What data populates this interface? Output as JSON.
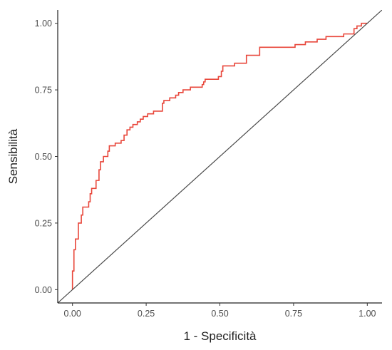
{
  "chart_data": {
    "type": "line",
    "xlabel": "1 - Specificità",
    "ylabel": "Sensibilità",
    "xlim": [
      -0.05,
      1.05
    ],
    "ylim": [
      -0.05,
      1.05
    ],
    "x_ticks": [
      0,
      0.25,
      0.5,
      0.75,
      1
    ],
    "x_tick_labels": [
      "0.00",
      "0.25",
      "0.50",
      "0.75",
      "1.00"
    ],
    "y_ticks": [
      0,
      0.25,
      0.5,
      0.75,
      1
    ],
    "y_tick_labels": [
      "0.00",
      "0.25",
      "0.50",
      "0.75",
      "1.00"
    ],
    "grid": false,
    "colors": {
      "roc": "#e8463a",
      "reference": "#4a4a4a",
      "axis": "#222222"
    },
    "series": [
      {
        "role": "roc",
        "points": [
          [
            0.0,
            0.0
          ],
          [
            0.0,
            0.07
          ],
          [
            0.005,
            0.07
          ],
          [
            0.005,
            0.15
          ],
          [
            0.01,
            0.15
          ],
          [
            0.01,
            0.19
          ],
          [
            0.02,
            0.19
          ],
          [
            0.02,
            0.25
          ],
          [
            0.03,
            0.25
          ],
          [
            0.03,
            0.28
          ],
          [
            0.035,
            0.28
          ],
          [
            0.035,
            0.31
          ],
          [
            0.055,
            0.31
          ],
          [
            0.055,
            0.33
          ],
          [
            0.06,
            0.33
          ],
          [
            0.06,
            0.36
          ],
          [
            0.065,
            0.36
          ],
          [
            0.065,
            0.38
          ],
          [
            0.08,
            0.38
          ],
          [
            0.08,
            0.41
          ],
          [
            0.09,
            0.41
          ],
          [
            0.09,
            0.45
          ],
          [
            0.095,
            0.45
          ],
          [
            0.095,
            0.48
          ],
          [
            0.105,
            0.48
          ],
          [
            0.105,
            0.5
          ],
          [
            0.12,
            0.5
          ],
          [
            0.12,
            0.52
          ],
          [
            0.125,
            0.52
          ],
          [
            0.125,
            0.54
          ],
          [
            0.145,
            0.54
          ],
          [
            0.145,
            0.55
          ],
          [
            0.165,
            0.55
          ],
          [
            0.165,
            0.56
          ],
          [
            0.175,
            0.56
          ],
          [
            0.175,
            0.58
          ],
          [
            0.185,
            0.58
          ],
          [
            0.185,
            0.6
          ],
          [
            0.195,
            0.6
          ],
          [
            0.195,
            0.61
          ],
          [
            0.205,
            0.61
          ],
          [
            0.205,
            0.62
          ],
          [
            0.22,
            0.62
          ],
          [
            0.22,
            0.63
          ],
          [
            0.23,
            0.63
          ],
          [
            0.23,
            0.64
          ],
          [
            0.24,
            0.64
          ],
          [
            0.24,
            0.65
          ],
          [
            0.255,
            0.65
          ],
          [
            0.255,
            0.66
          ],
          [
            0.275,
            0.66
          ],
          [
            0.275,
            0.67
          ],
          [
            0.305,
            0.67
          ],
          [
            0.305,
            0.7
          ],
          [
            0.31,
            0.7
          ],
          [
            0.31,
            0.71
          ],
          [
            0.33,
            0.71
          ],
          [
            0.33,
            0.72
          ],
          [
            0.35,
            0.72
          ],
          [
            0.35,
            0.73
          ],
          [
            0.36,
            0.73
          ],
          [
            0.36,
            0.74
          ],
          [
            0.375,
            0.74
          ],
          [
            0.375,
            0.75
          ],
          [
            0.4,
            0.75
          ],
          [
            0.4,
            0.76
          ],
          [
            0.44,
            0.76
          ],
          [
            0.44,
            0.77
          ],
          [
            0.445,
            0.77
          ],
          [
            0.445,
            0.78
          ],
          [
            0.45,
            0.78
          ],
          [
            0.45,
            0.79
          ],
          [
            0.495,
            0.79
          ],
          [
            0.495,
            0.8
          ],
          [
            0.505,
            0.8
          ],
          [
            0.505,
            0.82
          ],
          [
            0.51,
            0.82
          ],
          [
            0.51,
            0.84
          ],
          [
            0.55,
            0.84
          ],
          [
            0.55,
            0.85
          ],
          [
            0.59,
            0.85
          ],
          [
            0.59,
            0.88
          ],
          [
            0.635,
            0.88
          ],
          [
            0.635,
            0.91
          ],
          [
            0.755,
            0.91
          ],
          [
            0.755,
            0.92
          ],
          [
            0.79,
            0.92
          ],
          [
            0.79,
            0.93
          ],
          [
            0.83,
            0.93
          ],
          [
            0.83,
            0.94
          ],
          [
            0.86,
            0.94
          ],
          [
            0.86,
            0.95
          ],
          [
            0.92,
            0.95
          ],
          [
            0.92,
            0.96
          ],
          [
            0.955,
            0.96
          ],
          [
            0.955,
            0.98
          ],
          [
            0.965,
            0.98
          ],
          [
            0.965,
            0.99
          ],
          [
            0.98,
            0.99
          ],
          [
            0.98,
            1.0
          ],
          [
            1.0,
            1.0
          ]
        ]
      },
      {
        "role": "reference",
        "points": [
          [
            -0.05,
            -0.05
          ],
          [
            1.05,
            1.05
          ]
        ]
      }
    ]
  }
}
